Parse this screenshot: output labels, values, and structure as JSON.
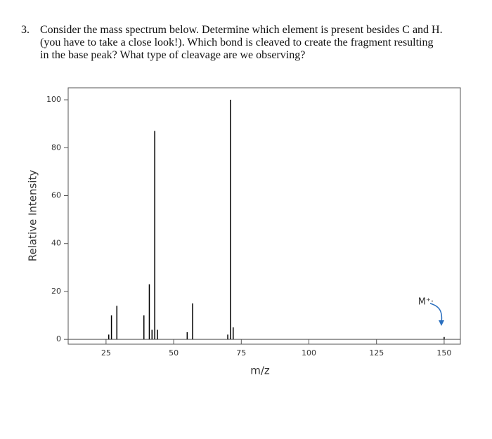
{
  "question": {
    "number": "3.",
    "lines": [
      "Consider the mass spectrum below. Determine which element is present besides C and H.",
      "(you have to take a close look!). Which bond is cleaved to create the fragment resulting",
      "in the base peak? What type of cleavage are we observing?"
    ]
  },
  "chart_data": {
    "type": "stem",
    "x_label": "m/z",
    "y_label": "Relative Intensity",
    "annotation": "M⁺·",
    "color": "#000000",
    "x": [
      26,
      27,
      29,
      39,
      41,
      42,
      43,
      44,
      55,
      57,
      70,
      71,
      72,
      150
    ],
    "values": [
      2,
      10,
      14,
      10,
      23,
      4,
      87,
      4,
      3,
      15,
      2,
      100,
      5,
      1
    ],
    "xlim": [
      11,
      156
    ],
    "ylim": [
      -2,
      105
    ],
    "xticks": [
      25,
      50,
      75,
      100,
      125,
      150
    ],
    "yticks": [
      0,
      20,
      40,
      60,
      80,
      100
    ]
  }
}
